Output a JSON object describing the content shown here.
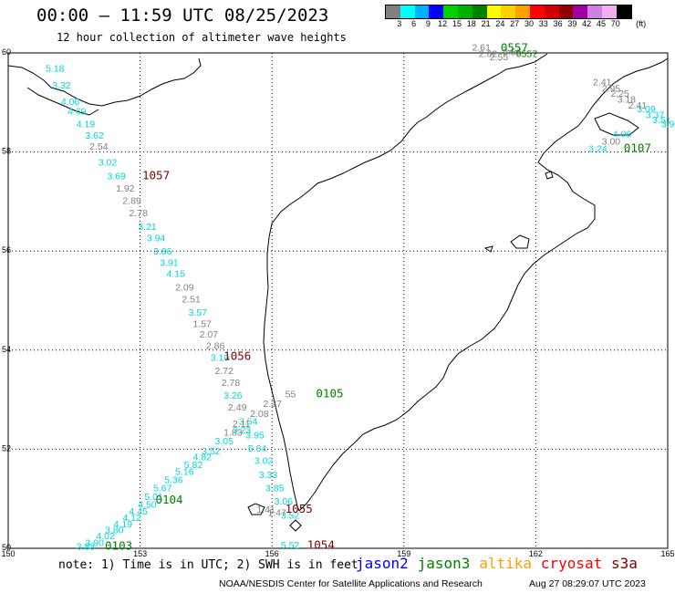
{
  "header": {
    "title": "00:00 – 11:59 UTC 08/25/2023",
    "subtitle": "12 hour collection of altimeter wave heights"
  },
  "colorbar": {
    "unit": "(ft)",
    "levels": [
      "3",
      "6",
      "9",
      "12",
      "15",
      "18",
      "21",
      "24",
      "27",
      "30",
      "33",
      "36",
      "39",
      "42",
      "45",
      "70"
    ],
    "colors": [
      "#808080",
      "#00ffff",
      "#00b0ff",
      "#0000ff",
      "#00d000",
      "#00b000",
      "#008000",
      "#ffff00",
      "#ffd000",
      "#ffa000",
      "#ff0000",
      "#d00000",
      "#900000",
      "#a000a0",
      "#d080e0",
      "#f0b0f0",
      "#000000"
    ]
  },
  "map": {
    "lat_labels": [
      "60",
      "58",
      "56",
      "54",
      "52",
      "50"
    ],
    "lon_labels": [
      "150",
      "153",
      "156",
      "159",
      "162",
      "165"
    ],
    "lat_values": [
      60,
      58,
      56,
      54,
      52,
      50
    ],
    "lon_values": [
      150,
      153,
      156,
      159,
      162,
      165
    ]
  },
  "tracks": [
    {
      "id": "1057",
      "color": "#800000",
      "label_pos": [
        153.05,
        57.45
      ],
      "points": [
        {
          "lon": 150.85,
          "lat": 59.62,
          "v": "5.18",
          "c": "#00d8d8"
        },
        {
          "lon": 151.0,
          "lat": 59.28,
          "v": "3.32",
          "c": "#00d8d8"
        },
        {
          "lon": 151.2,
          "lat": 58.95,
          "v": "4.06",
          "c": "#00d8d8"
        },
        {
          "lon": 151.35,
          "lat": 58.76,
          "v": "4.69",
          "c": "#00d8d8"
        },
        {
          "lon": 151.55,
          "lat": 58.5,
          "v": "4.19",
          "c": "#00d8d8"
        },
        {
          "lon": 151.75,
          "lat": 58.27,
          "v": "3.62",
          "c": "#00d8d8"
        },
        {
          "lon": 151.85,
          "lat": 58.05,
          "v": "2.54",
          "c": "#808080"
        },
        {
          "lon": 152.05,
          "lat": 57.73,
          "v": "3.02",
          "c": "#00d8d8"
        },
        {
          "lon": 152.25,
          "lat": 57.45,
          "v": "3.69",
          "c": "#00d8d8"
        },
        {
          "lon": 152.45,
          "lat": 57.2,
          "v": "1.92",
          "c": "#808080"
        },
        {
          "lon": 152.6,
          "lat": 56.95,
          "v": "2.89",
          "c": "#808080"
        },
        {
          "lon": 152.75,
          "lat": 56.7,
          "v": "2.78",
          "c": "#808080"
        },
        {
          "lon": 152.95,
          "lat": 56.43,
          "v": "3.21",
          "c": "#00d8d8"
        },
        {
          "lon": 153.15,
          "lat": 56.2,
          "v": "3.94",
          "c": "#00d8d8"
        },
        {
          "lon": 153.3,
          "lat": 55.93,
          "v": "3.86",
          "c": "#00d8d8"
        },
        {
          "lon": 153.45,
          "lat": 55.7,
          "v": "3.91",
          "c": "#00d8d8"
        },
        {
          "lon": 153.6,
          "lat": 55.48,
          "v": "4.15",
          "c": "#00d8d8"
        },
        {
          "lon": 153.8,
          "lat": 55.2,
          "v": "2.09",
          "c": "#808080"
        },
        {
          "lon": 153.95,
          "lat": 54.96,
          "v": "2.51",
          "c": "#808080"
        },
        {
          "lon": 154.1,
          "lat": 54.7,
          "v": "3.57",
          "c": "#00d8d8"
        },
        {
          "lon": 154.2,
          "lat": 54.47,
          "v": "1.57",
          "c": "#808080"
        },
        {
          "lon": 154.35,
          "lat": 54.25,
          "v": "2.07",
          "c": "#808080"
        },
        {
          "lon": 154.5,
          "lat": 54.02,
          "v": "2.86",
          "c": "#808080"
        },
        {
          "lon": 154.6,
          "lat": 53.78,
          "v": "3.10",
          "c": "#00d8d8"
        },
        {
          "lon": 154.7,
          "lat": 53.52,
          "v": "2.72",
          "c": "#808080"
        },
        {
          "lon": 154.85,
          "lat": 53.28,
          "v": "2.78",
          "c": "#808080"
        },
        {
          "lon": 154.9,
          "lat": 53.02,
          "v": "3.26",
          "c": "#00d8d8"
        },
        {
          "lon": 155.0,
          "lat": 52.78,
          "v": "2.49",
          "c": "#808080"
        },
        {
          "lon": 155.25,
          "lat": 52.5,
          "v": "3.54",
          "c": "#00d8d8"
        },
        {
          "lon": 155.4,
          "lat": 52.22,
          "v": "3.95",
          "c": "#00d8d8"
        },
        {
          "lon": 155.45,
          "lat": 51.95,
          "v": "5.84",
          "c": "#00d8d8"
        },
        {
          "lon": 155.6,
          "lat": 51.7,
          "v": "3.02",
          "c": "#00d8d8"
        },
        {
          "lon": 155.7,
          "lat": 51.42,
          "v": "3.33",
          "c": "#00d8d8"
        },
        {
          "lon": 155.85,
          "lat": 51.15,
          "v": "3.85",
          "c": "#00d8d8"
        },
        {
          "lon": 156.05,
          "lat": 50.88,
          "v": "3.06",
          "c": "#00d8d8"
        },
        {
          "lon": 156.2,
          "lat": 50.6,
          "v": "3.52",
          "c": "#00d8d8"
        }
      ]
    },
    {
      "id": "1056",
      "color": "#800000",
      "label_pos": [
        154.9,
        53.8
      ],
      "points": []
    },
    {
      "id": "0105",
      "color": "#008000",
      "label_pos": [
        157.0,
        53.05
      ],
      "points": [
        {
          "lon": 156.3,
          "lat": 53.05,
          "v": "55",
          "c": "#808080"
        },
        {
          "lon": 155.8,
          "lat": 52.85,
          "v": "2.27",
          "c": "#808080"
        },
        {
          "lon": 155.5,
          "lat": 52.65,
          "v": "2.08",
          "c": "#808080"
        },
        {
          "lon": 155.1,
          "lat": 52.45,
          "v": "2.11",
          "c": "#808080"
        },
        {
          "lon": 154.9,
          "lat": 52.27,
          "v": "1.83",
          "c": "#808080"
        }
      ]
    },
    {
      "id": "0104",
      "color": "#008000",
      "label_pos": [
        153.35,
        50.9
      ],
      "points": [
        {
          "lon": 155.1,
          "lat": 52.32,
          "v": "3.23",
          "c": "#00d8d8"
        },
        {
          "lon": 154.7,
          "lat": 52.1,
          "v": "3.05",
          "c": "#00d8d8"
        },
        {
          "lon": 154.4,
          "lat": 51.9,
          "v": "3.52",
          "c": "#00d8d8"
        },
        {
          "lon": 154.2,
          "lat": 51.78,
          "v": "4.82",
          "c": "#00d8d8"
        },
        {
          "lon": 154.0,
          "lat": 51.62,
          "v": "5.82",
          "c": "#00d8d8"
        },
        {
          "lon": 153.8,
          "lat": 51.48,
          "v": "5.16",
          "c": "#00d8d8"
        },
        {
          "lon": 153.55,
          "lat": 51.32,
          "v": "5.36",
          "c": "#00d8d8"
        },
        {
          "lon": 153.3,
          "lat": 51.15,
          "v": "5.67",
          "c": "#00d8d8"
        },
        {
          "lon": 153.1,
          "lat": 50.98,
          "v": "5.01",
          "c": "#00d8d8"
        },
        {
          "lon": 152.95,
          "lat": 50.82,
          "v": "4.50",
          "c": "#00d8d8"
        },
        {
          "lon": 152.75,
          "lat": 50.68,
          "v": "4.45",
          "c": "#00d8d8"
        },
        {
          "lon": 152.6,
          "lat": 50.55,
          "v": "4.12",
          "c": "#00d8d8"
        },
        {
          "lon": 152.4,
          "lat": 50.42,
          "v": "4.19",
          "c": "#00d8d8"
        },
        {
          "lon": 152.2,
          "lat": 50.3,
          "v": "3.80",
          "c": "#00d8d8"
        },
        {
          "lon": 152.0,
          "lat": 50.18,
          "v": "4.02",
          "c": "#00d8d8"
        },
        {
          "lon": 151.75,
          "lat": 50.05,
          "v": "3.90",
          "c": "#00d8d8"
        }
      ]
    },
    {
      "id": "0103",
      "color": "#008000",
      "label_pos": [
        152.2,
        49.97
      ],
      "points": [
        {
          "lon": 151.55,
          "lat": 49.97,
          "v": "3.83",
          "c": "#00d8d8"
        }
      ]
    },
    {
      "id": "1055",
      "color": "#800000",
      "label_pos": [
        156.3,
        50.72
      ],
      "points": [
        {
          "lon": 155.65,
          "lat": 50.72,
          "v": "1.41",
          "c": "#808080"
        },
        {
          "lon": 155.9,
          "lat": 50.65,
          "v": "1.47",
          "c": "#808080"
        }
      ]
    },
    {
      "id": "1054",
      "color": "#800000",
      "label_pos": [
        156.8,
        49.99
      ],
      "points": [
        {
          "lon": 156.2,
          "lat": 50.0,
          "v": "5.52",
          "c": "#00d8d8"
        }
      ]
    },
    {
      "id": "0557",
      "color": "#008000",
      "label_pos": [
        161.2,
        60.03
      ],
      "points": [
        {
          "lon": 160.55,
          "lat": 60.05,
          "v": "2.61",
          "c": "#808080"
        },
        {
          "lon": 160.7,
          "lat": 59.92,
          "v": "2.62",
          "c": "#808080"
        },
        {
          "lon": 160.95,
          "lat": 59.85,
          "v": "2.55",
          "c": "#808080"
        },
        {
          "lon": 161.25,
          "lat": 59.95,
          "v": "2.56",
          "c": "#808080"
        },
        {
          "lon": 161.55,
          "lat": 59.92,
          "v": "0557",
          "c": "#008000"
        }
      ]
    },
    {
      "id": "0107",
      "color": "#008000",
      "label_pos": [
        164.0,
        58.0
      ],
      "points": [
        {
          "lon": 163.85,
          "lat": 59.0,
          "v": "3.18",
          "c": "#808080"
        },
        {
          "lon": 164.1,
          "lat": 58.88,
          "v": "2.41",
          "c": "#808080"
        },
        {
          "lon": 164.3,
          "lat": 58.8,
          "v": "3.09",
          "c": "#00d8d8"
        },
        {
          "lon": 164.5,
          "lat": 58.68,
          "v": "3.37",
          "c": "#00d8d8"
        },
        {
          "lon": 164.65,
          "lat": 58.58,
          "v": "3.51",
          "c": "#00d8d8"
        },
        {
          "lon": 164.85,
          "lat": 58.5,
          "v": "3.90",
          "c": "#00d8d8"
        },
        {
          "lon": 163.75,
          "lat": 58.3,
          "v": "4.06",
          "c": "#00d8d8"
        },
        {
          "lon": 163.5,
          "lat": 58.15,
          "v": "3.00",
          "c": "#808080"
        },
        {
          "lon": 163.2,
          "lat": 58.0,
          "v": "3.24",
          "c": "#00d8d8"
        }
      ]
    },
    {
      "id": "coast-ne",
      "color": "#808080",
      "label_pos": null,
      "points": [
        {
          "lon": 163.3,
          "lat": 59.35,
          "v": "2.41",
          "c": "#808080"
        },
        {
          "lon": 163.5,
          "lat": 59.22,
          "v": "2.95",
          "c": "#808080"
        },
        {
          "lon": 163.7,
          "lat": 59.12,
          "v": "2.25",
          "c": "#808080"
        }
      ]
    }
  ],
  "footer": {
    "note": "note:  1) Time is in UTC;  2) SWH is in feet",
    "legend": [
      {
        "label": "jason2",
        "color": "#0000ff"
      },
      {
        "label": "jason3",
        "color": "#008000"
      },
      {
        "label": "altika",
        "color": "#ffa000"
      },
      {
        "label": "cryosat",
        "color": "#ff0000"
      },
      {
        "label": "s3a",
        "color": "#800000"
      }
    ],
    "credit": "NOAA/NESDIS Center for Satellite Applications and Research",
    "stamp": "Aug 27 08:29:07 UTC 2023"
  }
}
